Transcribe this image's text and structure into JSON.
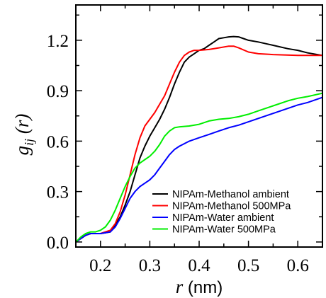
{
  "chart_data": {
    "type": "line",
    "xlabel": {
      "var": "r",
      "unit": "(nm)"
    },
    "ylabel": {
      "var": "g",
      "sub": "ij",
      "arg": "(r)"
    },
    "xlim": [
      0.15,
      0.65
    ],
    "ylim": [
      -0.03,
      1.41
    ],
    "x_ticks": [
      0.2,
      0.3,
      0.4,
      0.5,
      0.6
    ],
    "x_tick_labels": [
      "0.2",
      "0.3",
      "0.4",
      "0.5",
      "0.6"
    ],
    "y_ticks": [
      0.0,
      0.3,
      0.6,
      0.9,
      1.2
    ],
    "y_tick_labels": [
      "0.0",
      "0.3",
      "0.6",
      "0.9",
      "1.2"
    ],
    "grid": false,
    "legend_position": "bottom-right",
    "series": [
      {
        "name": "NIPAm-Methanol ambient",
        "color": "#000000",
        "points": [
          [
            0.15,
            0.0
          ],
          [
            0.16,
            0.02
          ],
          [
            0.17,
            0.04
          ],
          [
            0.18,
            0.05
          ],
          [
            0.2,
            0.05
          ],
          [
            0.22,
            0.06
          ],
          [
            0.23,
            0.1
          ],
          [
            0.24,
            0.15
          ],
          [
            0.25,
            0.22
          ],
          [
            0.26,
            0.3
          ],
          [
            0.27,
            0.4
          ],
          [
            0.28,
            0.5
          ],
          [
            0.29,
            0.57
          ],
          [
            0.3,
            0.63
          ],
          [
            0.31,
            0.68
          ],
          [
            0.32,
            0.73
          ],
          [
            0.33,
            0.79
          ],
          [
            0.34,
            0.86
          ],
          [
            0.35,
            0.94
          ],
          [
            0.36,
            1.01
          ],
          [
            0.37,
            1.07
          ],
          [
            0.38,
            1.1
          ],
          [
            0.39,
            1.12
          ],
          [
            0.4,
            1.14
          ],
          [
            0.41,
            1.15
          ],
          [
            0.42,
            1.17
          ],
          [
            0.43,
            1.19
          ],
          [
            0.44,
            1.21
          ],
          [
            0.45,
            1.215
          ],
          [
            0.46,
            1.22
          ],
          [
            0.47,
            1.222
          ],
          [
            0.48,
            1.22
          ],
          [
            0.49,
            1.21
          ],
          [
            0.5,
            1.2
          ],
          [
            0.52,
            1.19
          ],
          [
            0.55,
            1.17
          ],
          [
            0.58,
            1.15
          ],
          [
            0.6,
            1.14
          ],
          [
            0.62,
            1.125
          ],
          [
            0.65,
            1.11
          ]
        ]
      },
      {
        "name": "NIPAm-Methanol 500MPa",
        "color": "#ff0000",
        "points": [
          [
            0.15,
            0.0
          ],
          [
            0.16,
            0.02
          ],
          [
            0.17,
            0.04
          ],
          [
            0.18,
            0.05
          ],
          [
            0.2,
            0.05
          ],
          [
            0.21,
            0.06
          ],
          [
            0.22,
            0.07
          ],
          [
            0.23,
            0.11
          ],
          [
            0.24,
            0.18
          ],
          [
            0.25,
            0.28
          ],
          [
            0.26,
            0.4
          ],
          [
            0.27,
            0.52
          ],
          [
            0.28,
            0.62
          ],
          [
            0.29,
            0.69
          ],
          [
            0.3,
            0.73
          ],
          [
            0.31,
            0.77
          ],
          [
            0.32,
            0.82
          ],
          [
            0.33,
            0.87
          ],
          [
            0.34,
            0.94
          ],
          [
            0.35,
            1.01
          ],
          [
            0.36,
            1.07
          ],
          [
            0.37,
            1.11
          ],
          [
            0.38,
            1.13
          ],
          [
            0.39,
            1.14
          ],
          [
            0.4,
            1.14
          ],
          [
            0.42,
            1.145
          ],
          [
            0.44,
            1.155
          ],
          [
            0.46,
            1.165
          ],
          [
            0.47,
            1.165
          ],
          [
            0.48,
            1.155
          ],
          [
            0.5,
            1.13
          ],
          [
            0.52,
            1.12
          ],
          [
            0.55,
            1.115
          ],
          [
            0.6,
            1.11
          ],
          [
            0.65,
            1.11
          ]
        ]
      },
      {
        "name": "NIPAm-Water ambient",
        "color": "#0000ff",
        "points": [
          [
            0.15,
            0.0
          ],
          [
            0.16,
            0.02
          ],
          [
            0.17,
            0.04
          ],
          [
            0.18,
            0.05
          ],
          [
            0.2,
            0.05
          ],
          [
            0.22,
            0.06
          ],
          [
            0.23,
            0.09
          ],
          [
            0.24,
            0.14
          ],
          [
            0.25,
            0.2
          ],
          [
            0.26,
            0.26
          ],
          [
            0.27,
            0.3
          ],
          [
            0.28,
            0.33
          ],
          [
            0.29,
            0.35
          ],
          [
            0.3,
            0.37
          ],
          [
            0.31,
            0.4
          ],
          [
            0.32,
            0.44
          ],
          [
            0.33,
            0.48
          ],
          [
            0.34,
            0.52
          ],
          [
            0.35,
            0.55
          ],
          [
            0.36,
            0.57
          ],
          [
            0.38,
            0.6
          ],
          [
            0.4,
            0.62
          ],
          [
            0.42,
            0.64
          ],
          [
            0.44,
            0.66
          ],
          [
            0.46,
            0.68
          ],
          [
            0.48,
            0.695
          ],
          [
            0.5,
            0.715
          ],
          [
            0.52,
            0.735
          ],
          [
            0.54,
            0.755
          ],
          [
            0.56,
            0.775
          ],
          [
            0.58,
            0.795
          ],
          [
            0.6,
            0.815
          ],
          [
            0.62,
            0.83
          ],
          [
            0.65,
            0.86
          ]
        ]
      },
      {
        "name": "NIPAm-Water 500MPa",
        "color": "#00ee00",
        "points": [
          [
            0.15,
            0.0
          ],
          [
            0.16,
            0.03
          ],
          [
            0.17,
            0.05
          ],
          [
            0.18,
            0.06
          ],
          [
            0.19,
            0.06
          ],
          [
            0.2,
            0.07
          ],
          [
            0.21,
            0.09
          ],
          [
            0.22,
            0.13
          ],
          [
            0.23,
            0.19
          ],
          [
            0.24,
            0.26
          ],
          [
            0.25,
            0.33
          ],
          [
            0.26,
            0.39
          ],
          [
            0.27,
            0.44
          ],
          [
            0.28,
            0.47
          ],
          [
            0.29,
            0.49
          ],
          [
            0.3,
            0.51
          ],
          [
            0.31,
            0.54
          ],
          [
            0.32,
            0.58
          ],
          [
            0.33,
            0.63
          ],
          [
            0.34,
            0.66
          ],
          [
            0.35,
            0.68
          ],
          [
            0.36,
            0.685
          ],
          [
            0.38,
            0.69
          ],
          [
            0.4,
            0.7
          ],
          [
            0.42,
            0.72
          ],
          [
            0.44,
            0.73
          ],
          [
            0.46,
            0.735
          ],
          [
            0.48,
            0.745
          ],
          [
            0.5,
            0.76
          ],
          [
            0.52,
            0.78
          ],
          [
            0.55,
            0.81
          ],
          [
            0.58,
            0.84
          ],
          [
            0.6,
            0.855
          ],
          [
            0.62,
            0.865
          ],
          [
            0.65,
            0.885
          ]
        ]
      }
    ]
  }
}
